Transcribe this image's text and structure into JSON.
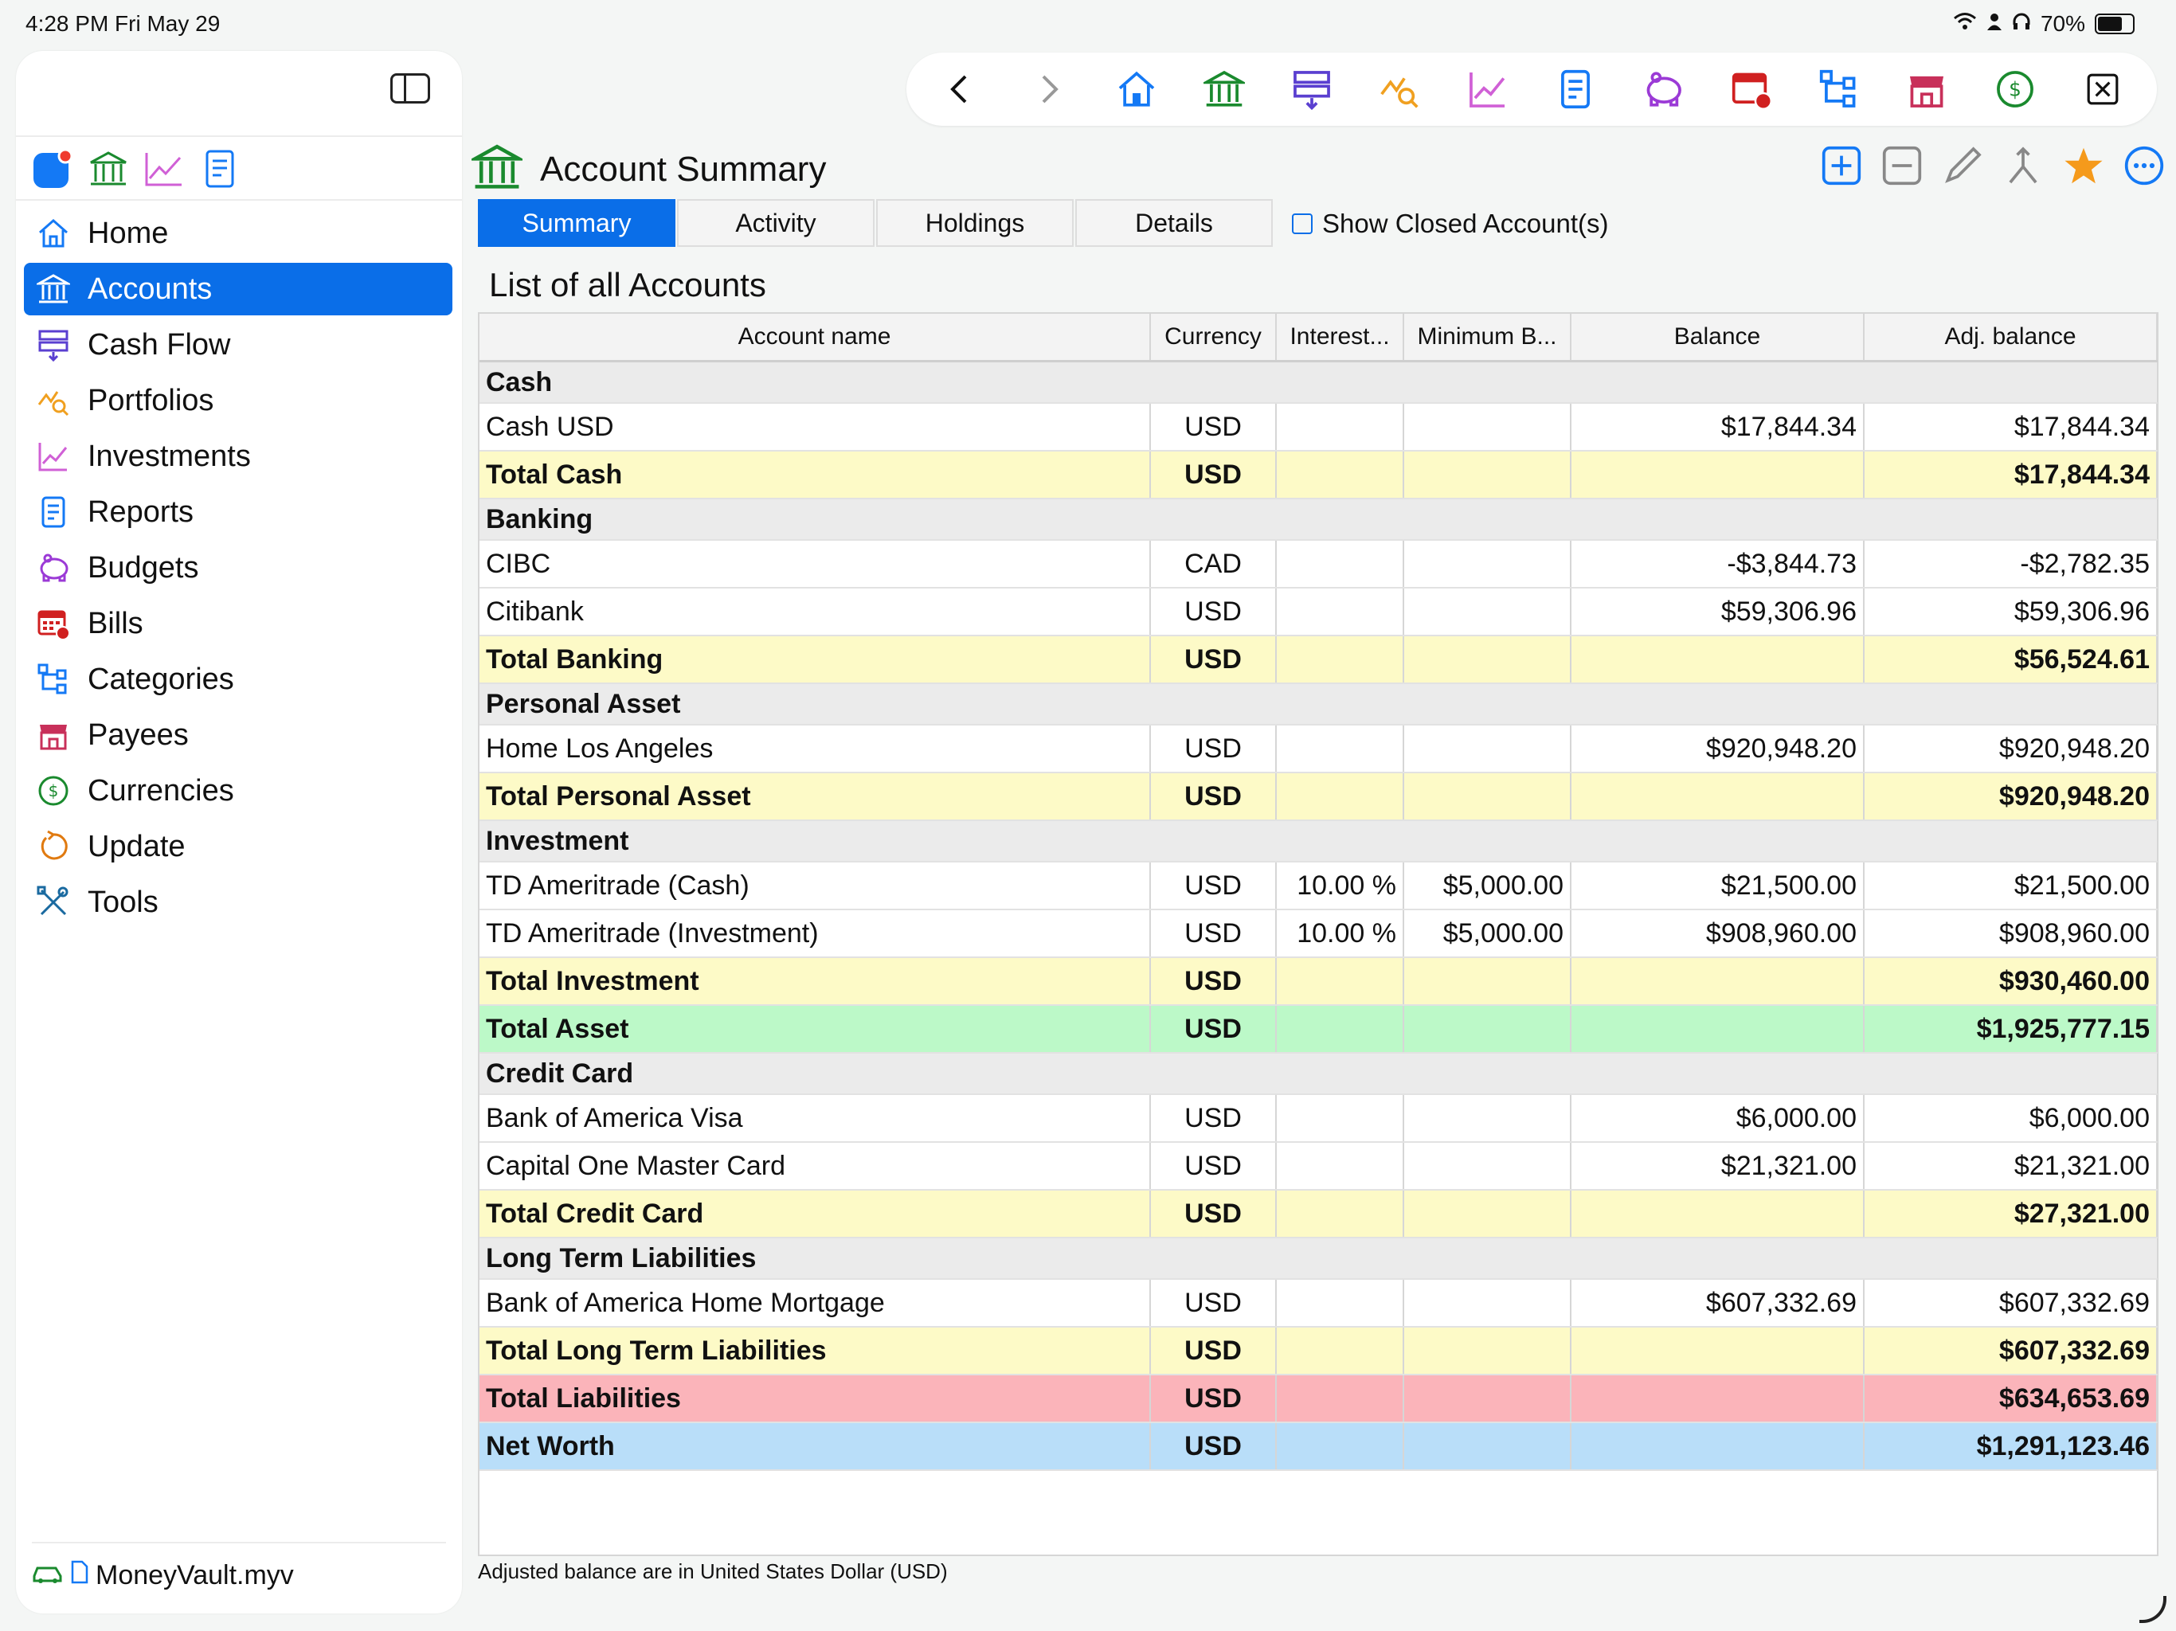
{
  "status_bar": {
    "time": "4:28 PM   Fri May 29",
    "battery": "70%"
  },
  "sidebar": {
    "nav": [
      {
        "label": "Home",
        "icon": "house-icon"
      },
      {
        "label": "Accounts",
        "icon": "bank-icon",
        "active": true
      },
      {
        "label": "Cash Flow",
        "icon": "cashflow-icon"
      },
      {
        "label": "Portfolios",
        "icon": "portfolio-icon"
      },
      {
        "label": "Investments",
        "icon": "chart-line-icon"
      },
      {
        "label": "Reports",
        "icon": "report-icon"
      },
      {
        "label": "Budgets",
        "icon": "piggy-bank-icon"
      },
      {
        "label": "Bills",
        "icon": "calendar-icon"
      },
      {
        "label": "Categories",
        "icon": "hierarchy-icon"
      },
      {
        "label": "Payees",
        "icon": "store-icon"
      },
      {
        "label": "Currencies",
        "icon": "dollar-circle-icon"
      },
      {
        "label": "Update",
        "icon": "refresh-icon"
      },
      {
        "label": "Tools",
        "icon": "tools-icon"
      }
    ],
    "file_name": "MoneyVault.myv"
  },
  "header": {
    "title": "Account Summary"
  },
  "tabs": [
    "Summary",
    "Activity",
    "Holdings",
    "Details"
  ],
  "show_closed_label": "Show Closed Account(s)",
  "list_title": "List of all Accounts",
  "table": {
    "columns": [
      "Account name",
      "Currency",
      "Interest...",
      "Minimum B...",
      "Balance",
      "Adj. balance"
    ],
    "rows": [
      {
        "type": "group",
        "name": "Cash"
      },
      {
        "type": "row",
        "name": "Cash USD",
        "currency": "USD",
        "interest": "",
        "minimum": "",
        "balance": "$17,844.34",
        "adj": "$17,844.34"
      },
      {
        "type": "total",
        "name": "Total Cash",
        "currency": "USD",
        "interest": "",
        "minimum": "",
        "balance": "",
        "adj": "$17,844.34"
      },
      {
        "type": "group",
        "name": "Banking"
      },
      {
        "type": "row",
        "name": "CIBC",
        "currency": "CAD",
        "interest": "",
        "minimum": "",
        "balance": "-$3,844.73",
        "adj": "-$2,782.35"
      },
      {
        "type": "row",
        "name": "Citibank",
        "currency": "USD",
        "interest": "",
        "minimum": "",
        "balance": "$59,306.96",
        "adj": "$59,306.96"
      },
      {
        "type": "total",
        "name": "Total Banking",
        "currency": "USD",
        "interest": "",
        "minimum": "",
        "balance": "",
        "adj": "$56,524.61"
      },
      {
        "type": "group",
        "name": "Personal Asset"
      },
      {
        "type": "row",
        "name": "Home Los Angeles",
        "currency": "USD",
        "interest": "",
        "minimum": "",
        "balance": "$920,948.20",
        "adj": "$920,948.20"
      },
      {
        "type": "total",
        "name": "Total Personal Asset",
        "currency": "USD",
        "interest": "",
        "minimum": "",
        "balance": "",
        "adj": "$920,948.20"
      },
      {
        "type": "group",
        "name": "Investment"
      },
      {
        "type": "row",
        "name": "TD Ameritrade (Cash)",
        "currency": "USD",
        "interest": "10.00 %",
        "minimum": "$5,000.00",
        "balance": "$21,500.00",
        "adj": "$21,500.00"
      },
      {
        "type": "row",
        "name": "TD Ameritrade (Investment)",
        "currency": "USD",
        "interest": "10.00 %",
        "minimum": "$5,000.00",
        "balance": "$908,960.00",
        "adj": "$908,960.00"
      },
      {
        "type": "total",
        "name": "Total Investment",
        "currency": "USD",
        "interest": "",
        "minimum": "",
        "balance": "",
        "adj": "$930,460.00"
      },
      {
        "type": "asset",
        "name": "Total Asset",
        "currency": "USD",
        "interest": "",
        "minimum": "",
        "balance": "",
        "adj": "$1,925,777.15"
      },
      {
        "type": "group",
        "name": "Credit Card"
      },
      {
        "type": "row",
        "name": "Bank of America Visa",
        "currency": "USD",
        "interest": "",
        "minimum": "",
        "balance": "$6,000.00",
        "adj": "$6,000.00"
      },
      {
        "type": "row",
        "name": "Capital One Master Card",
        "currency": "USD",
        "interest": "",
        "minimum": "",
        "balance": "$21,321.00",
        "adj": "$21,321.00"
      },
      {
        "type": "total",
        "name": "Total Credit Card",
        "currency": "USD",
        "interest": "",
        "minimum": "",
        "balance": "",
        "adj": "$27,321.00"
      },
      {
        "type": "group",
        "name": "Long Term Liabilities"
      },
      {
        "type": "row",
        "name": "Bank of America Home Mortgage",
        "currency": "USD",
        "interest": "",
        "minimum": "",
        "balance": "$607,332.69",
        "adj": "$607,332.69"
      },
      {
        "type": "total",
        "name": "Total Long Term Liabilities",
        "currency": "USD",
        "interest": "",
        "minimum": "",
        "balance": "",
        "adj": "$607,332.69"
      },
      {
        "type": "liab",
        "name": "Total Liabilities",
        "currency": "USD",
        "interest": "",
        "minimum": "",
        "balance": "",
        "adj": "$634,653.69"
      },
      {
        "type": "net",
        "name": "Net Worth",
        "currency": "USD",
        "interest": "",
        "minimum": "",
        "balance": "",
        "adj": "$1,291,123.46"
      }
    ]
  },
  "footnote": "Adjusted balance are in United States Dollar (USD)",
  "colors": {
    "accent": "#0a6ee8",
    "total_row": "#fdfac7",
    "asset_row": "#bcf9c8",
    "liabilities_row": "#fbb4ba",
    "net_row": "#b9def9"
  }
}
